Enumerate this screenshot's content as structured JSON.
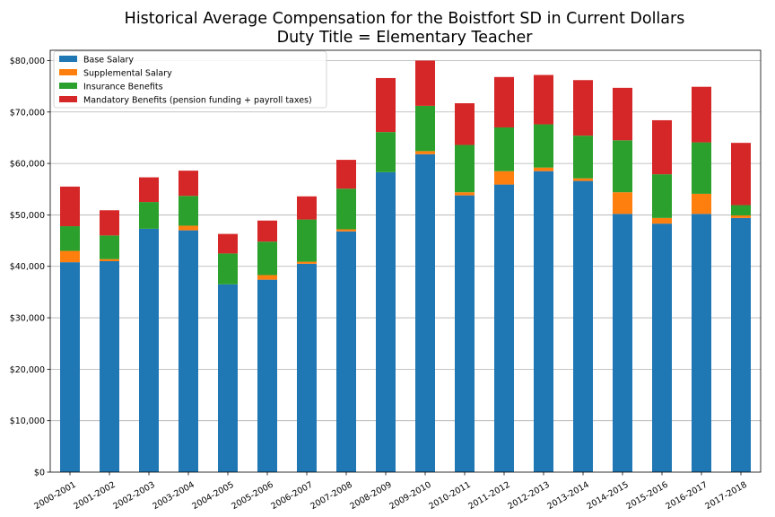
{
  "chart_data": {
    "type": "bar",
    "stacked": true,
    "title_line1": "Historical Average Compensation for the Boistfort SD in Current Dollars",
    "title_line2": "Duty Title = Elementary Teacher",
    "xlabel": "",
    "ylabel": "",
    "ylim": [
      0,
      82000
    ],
    "yticks": [
      0,
      10000,
      20000,
      30000,
      40000,
      50000,
      60000,
      70000,
      80000
    ],
    "ytick_labels": [
      "$0",
      "$10,000",
      "$20,000",
      "$30,000",
      "$40,000",
      "$50,000",
      "$60,000",
      "$70,000",
      "$80,000"
    ],
    "grid": "horizontal",
    "legend_position": "top-left",
    "categories": [
      "2000-2001",
      "2001-2002",
      "2002-2003",
      "2003-2004",
      "2004-2005",
      "2005-2006",
      "2006-2007",
      "2007-2008",
      "2008-2009",
      "2009-2010",
      "2010-2011",
      "2011-2012",
      "2012-2013",
      "2013-2014",
      "2014-2015",
      "2015-2016",
      "2016-2017",
      "2017-2018"
    ],
    "series": [
      {
        "name": "Base Salary",
        "color": "#1f77b4",
        "values": [
          40800,
          41000,
          47300,
          47000,
          36500,
          37400,
          40500,
          46800,
          58300,
          61800,
          53800,
          55900,
          58500,
          56600,
          50200,
          48300,
          50200,
          49400
        ]
      },
      {
        "name": "Supplemental Salary",
        "color": "#ff7f0e",
        "values": [
          2200,
          400,
          0,
          900,
          0,
          900,
          400,
          400,
          0,
          600,
          600,
          2600,
          700,
          500,
          4200,
          1100,
          3900,
          500
        ]
      },
      {
        "name": "Insurance Benefits",
        "color": "#2ca02c",
        "values": [
          4800,
          4600,
          5200,
          5800,
          6000,
          6500,
          8200,
          7900,
          7800,
          8800,
          9200,
          8500,
          8400,
          8300,
          10100,
          8500,
          10000,
          2000
        ]
      },
      {
        "name": "Mandatory Benefits (pension funding + payroll taxes)",
        "color": "#d62728",
        "values": [
          7700,
          4900,
          4800,
          4900,
          3800,
          4100,
          4500,
          5600,
          10500,
          8800,
          8100,
          9800,
          9600,
          10800,
          10200,
          10500,
          10800,
          12100
        ]
      }
    ]
  }
}
